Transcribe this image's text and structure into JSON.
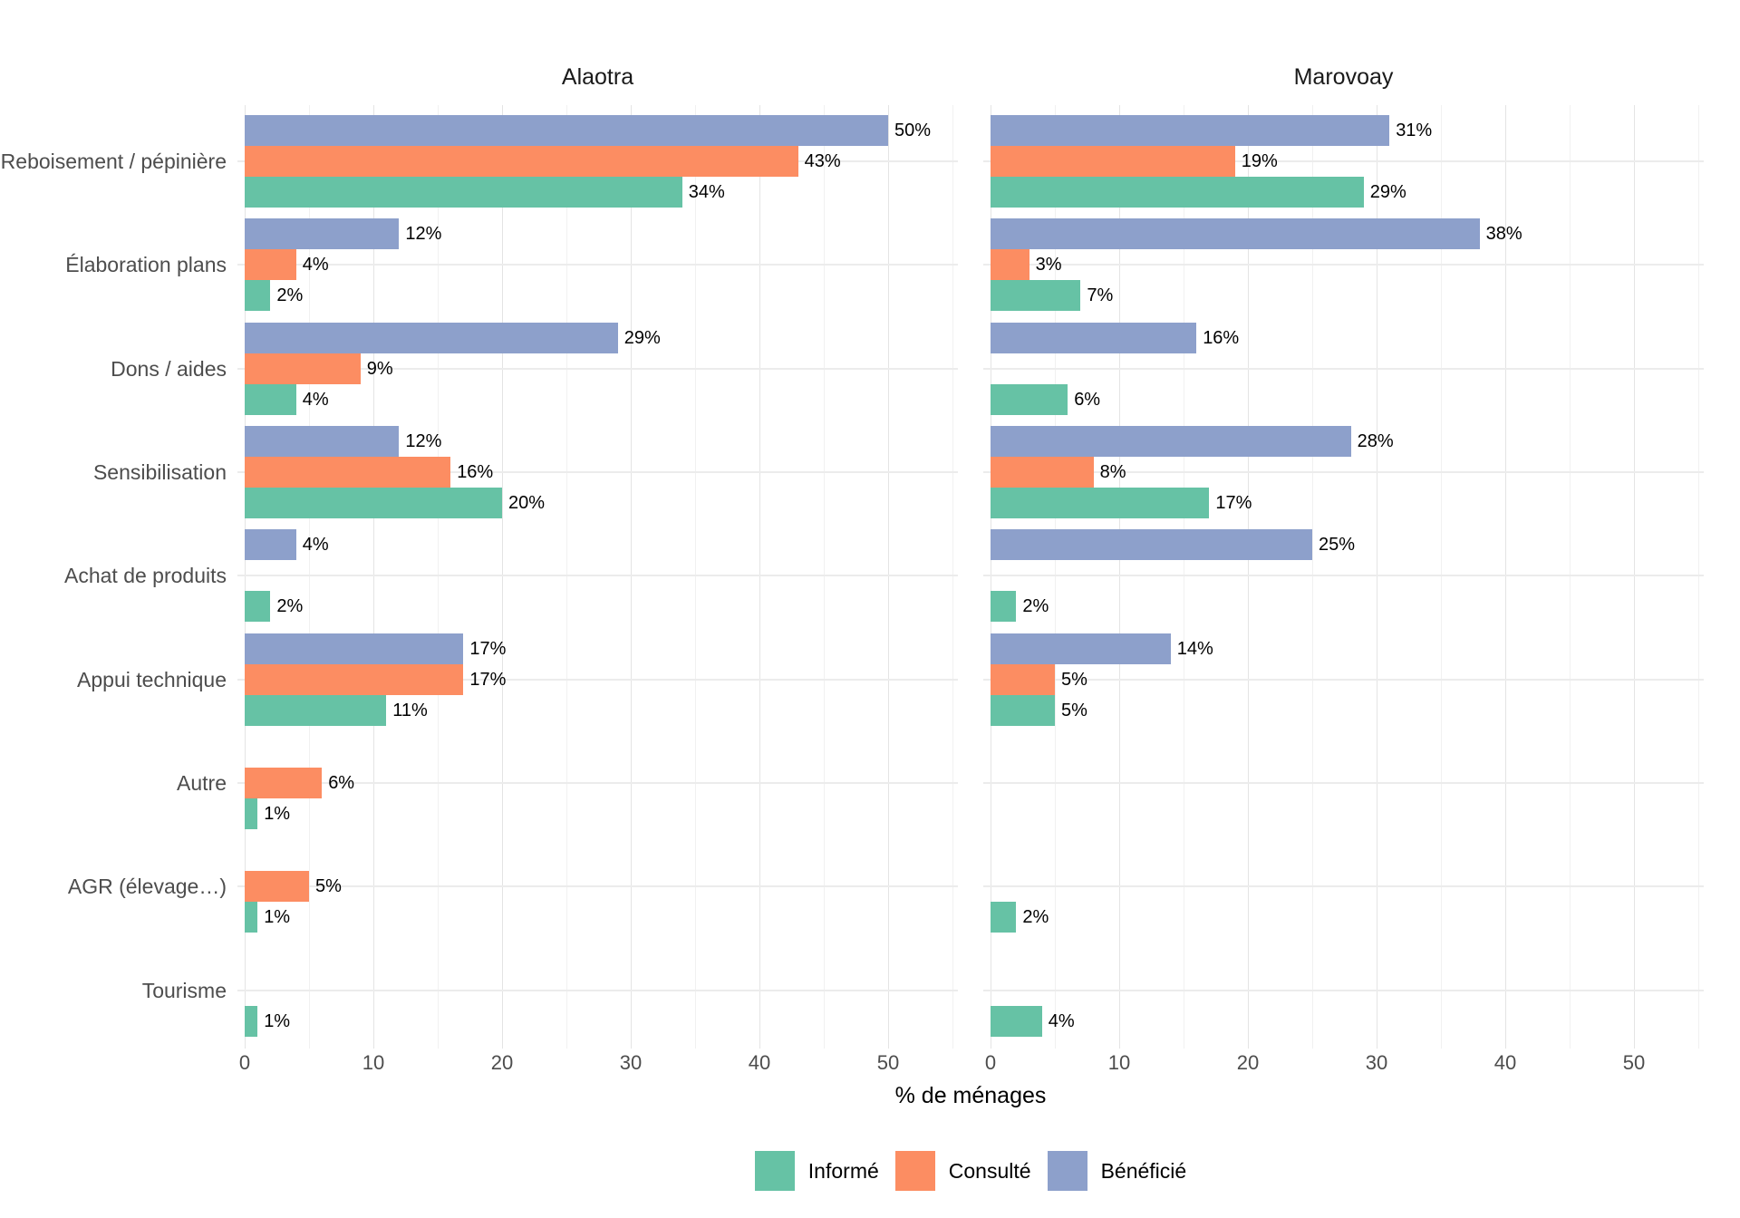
{
  "chart_data": {
    "type": "bar",
    "orientation": "horizontal",
    "title": "",
    "facets": [
      "Alaotra",
      "Marovoay"
    ],
    "categories": [
      "Reboisement / pépinière",
      "Élaboration plans",
      "Dons / aides",
      "Sensibilisation",
      "Achat de produits",
      "Appui technique",
      "Autre",
      "AGR (élevage…)",
      "Tourisme"
    ],
    "stack_order_top_to_bottom": [
      "Bénéficié",
      "Consulté",
      "Informé"
    ],
    "series": [
      {
        "name": "Informé",
        "color": "#66C2A5",
        "values": {
          "Alaotra": [
            34,
            2,
            4,
            20,
            2,
            11,
            1,
            1,
            1
          ],
          "Marovoay": [
            29,
            7,
            6,
            17,
            2,
            5,
            null,
            2,
            4
          ]
        }
      },
      {
        "name": "Consulté",
        "color": "#FC8D62",
        "values": {
          "Alaotra": [
            43,
            4,
            9,
            16,
            null,
            17,
            6,
            5,
            null
          ],
          "Marovoay": [
            19,
            3,
            null,
            8,
            null,
            5,
            null,
            null,
            null
          ]
        }
      },
      {
        "name": "Bénéficié",
        "color": "#8DA0CB",
        "values": {
          "Alaotra": [
            50,
            12,
            29,
            12,
            4,
            17,
            null,
            null,
            null
          ],
          "Marovoay": [
            31,
            38,
            16,
            28,
            25,
            14,
            null,
            null,
            null
          ]
        }
      }
    ],
    "value_suffix": "%",
    "xlabel": "% de ménages",
    "x_ticks": [
      "0",
      "10",
      "20",
      "30",
      "40",
      "50"
    ],
    "xlim": [
      0,
      56
    ],
    "grid": true,
    "legend_position": "bottom"
  },
  "legend": {
    "items": [
      {
        "label": "Informé",
        "color": "#66C2A5"
      },
      {
        "label": "Consulté",
        "color": "#FC8D62"
      },
      {
        "label": "Bénéficié",
        "color": "#8DA0CB"
      }
    ]
  }
}
